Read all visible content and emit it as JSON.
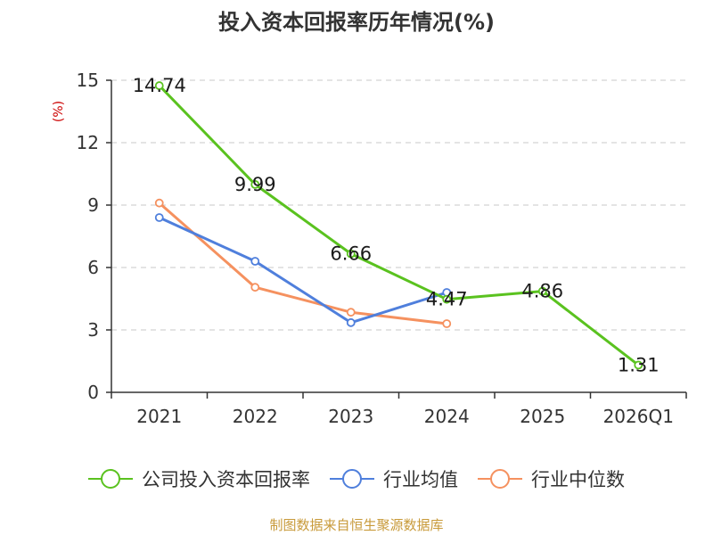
{
  "chart_data": {
    "type": "line",
    "title": "投入资本回报率历年情况(%)",
    "ylabel": "(%)",
    "xlabel": "",
    "ylim": [
      0,
      15
    ],
    "yticks": [
      0,
      3,
      6,
      9,
      12,
      15
    ],
    "grid": true,
    "legend_position": "bottom",
    "categories": [
      "2021",
      "2022",
      "2023",
      "2024",
      "2025",
      "2026Q1"
    ],
    "series": [
      {
        "name": "公司投入资本回报率",
        "color": "#5ac21f",
        "values": [
          14.74,
          9.99,
          6.66,
          4.47,
          4.86,
          1.31
        ],
        "labels": [
          "14.74",
          "9.99",
          "6.66",
          "4.47",
          "4.86",
          "1.31"
        ],
        "show_labels": true
      },
      {
        "name": "行业均值",
        "color": "#4f7fdc",
        "values": [
          8.4,
          6.3,
          3.35,
          4.8,
          null,
          null
        ],
        "show_labels": false
      },
      {
        "name": "行业中位数",
        "color": "#f5915f",
        "values": [
          9.1,
          5.05,
          3.85,
          3.3,
          null,
          null
        ],
        "show_labels": false
      }
    ]
  },
  "source": "制图数据来自恒生聚源数据库"
}
